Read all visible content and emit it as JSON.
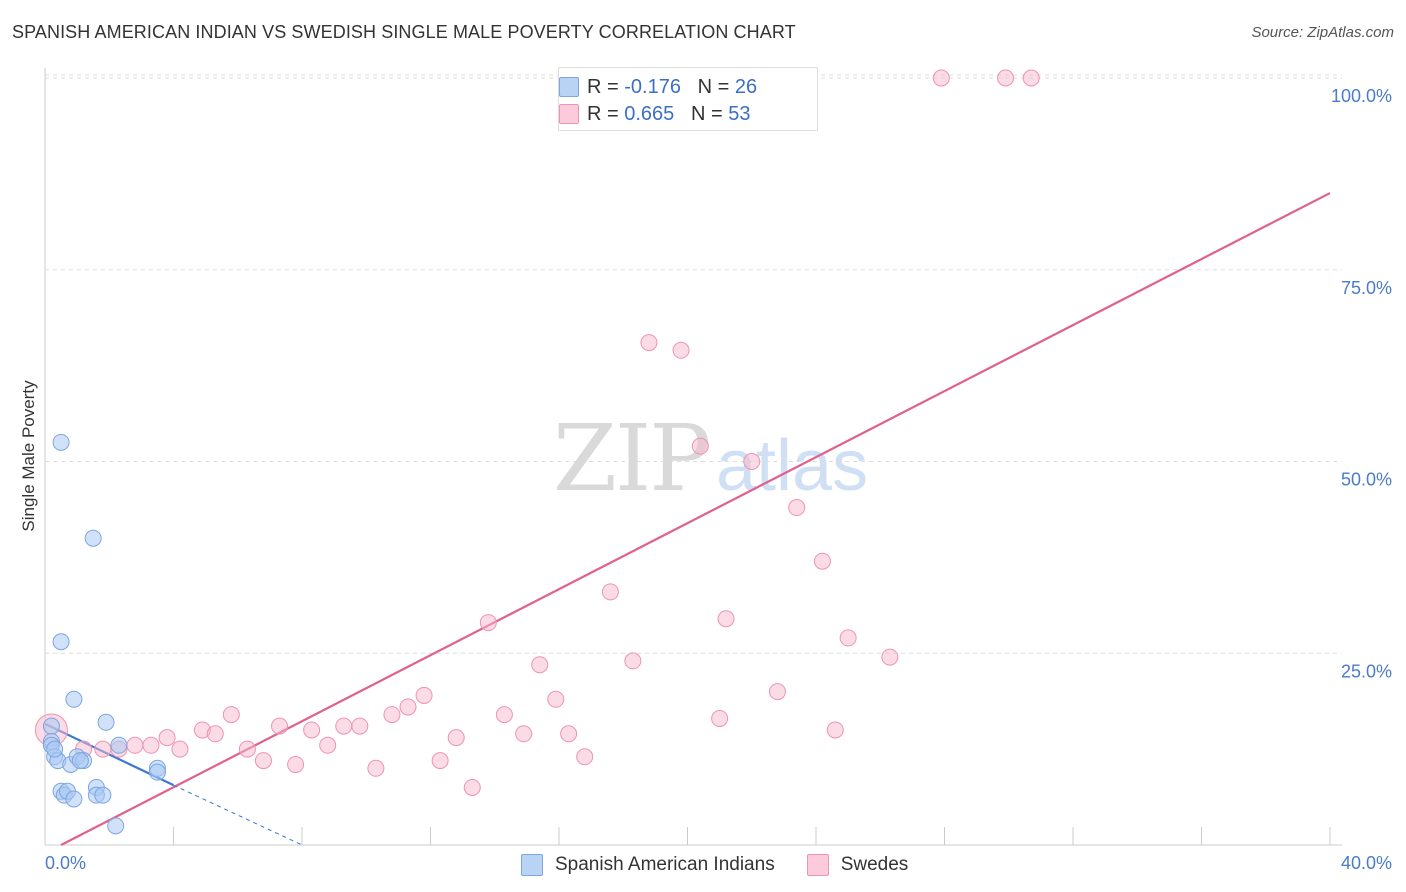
{
  "title": "SPANISH AMERICAN INDIAN VS SWEDISH SINGLE MALE POVERTY CORRELATION CHART",
  "source": "Source: ZipAtlas.com",
  "watermark": {
    "part1": "ZIP",
    "part2": "atlas"
  },
  "legend_stats": [
    {
      "r_label": "R = ",
      "r_value": "-0.176",
      "n_label": "N = ",
      "n_value": "26",
      "color": "#a9c8f2"
    },
    {
      "r_label": "R = ",
      "r_value": "0.665",
      "n_label": "N = ",
      "n_value": "53",
      "color": "#f7b8cb"
    }
  ],
  "colors": {
    "blue_fill": "#a9c8f2",
    "blue_stroke": "#7aa6e3",
    "blue_line": "#3a78d4",
    "pink_fill": "#f7b8cb",
    "pink_stroke": "#ee94b0",
    "pink_line": "#e0608e",
    "grid": "#dddddd",
    "tick_text": "#4a7cc9"
  },
  "chart_data": {
    "type": "scatter",
    "title": "SPANISH AMERICAN INDIAN VS SWEDISH SINGLE MALE POVERTY CORRELATION CHART",
    "xlabel": "",
    "ylabel": "Single Male Poverty",
    "xlim": [
      0,
      40
    ],
    "ylim": [
      0,
      100
    ],
    "x_tick_labels": [
      "0.0%",
      "40.0%"
    ],
    "y_tick_labels": [
      "25.0%",
      "50.0%",
      "75.0%",
      "100.0%"
    ],
    "y_ticks": [
      25,
      50,
      75,
      100
    ],
    "legend_position": "bottom-center",
    "series": [
      {
        "name": "Spanish American Indians",
        "color": "#a9c8f2",
        "points": [
          {
            "x": 0.2,
            "y": 15.5
          },
          {
            "x": 0.2,
            "y": 13.5
          },
          {
            "x": 0.2,
            "y": 13.0
          },
          {
            "x": 0.3,
            "y": 11.5
          },
          {
            "x": 0.4,
            "y": 11.0
          },
          {
            "x": 0.5,
            "y": 52.5
          },
          {
            "x": 0.5,
            "y": 26.5
          },
          {
            "x": 0.5,
            "y": 7.0
          },
          {
            "x": 0.6,
            "y": 6.5
          },
          {
            "x": 0.7,
            "y": 7.0
          },
          {
            "x": 0.8,
            "y": 10.5
          },
          {
            "x": 0.9,
            "y": 6.0
          },
          {
            "x": 0.9,
            "y": 19.0
          },
          {
            "x": 1.0,
            "y": 11.5
          },
          {
            "x": 1.2,
            "y": 11.0
          },
          {
            "x": 1.5,
            "y": 40.0
          },
          {
            "x": 1.6,
            "y": 7.5
          },
          {
            "x": 1.6,
            "y": 6.5
          },
          {
            "x": 1.8,
            "y": 6.5
          },
          {
            "x": 1.9,
            "y": 16.0
          },
          {
            "x": 2.2,
            "y": 2.5
          },
          {
            "x": 2.3,
            "y": 13.0
          },
          {
            "x": 3.5,
            "y": 10.0
          },
          {
            "x": 3.5,
            "y": 9.5
          },
          {
            "x": 0.3,
            "y": 12.5
          },
          {
            "x": 1.1,
            "y": 11.0
          }
        ],
        "trend": {
          "x0": 0.0,
          "y0": 15.8,
          "x1": 4.0,
          "y1": 7.8,
          "dash_x1": 8.0,
          "dash_y1": 0.0
        }
      },
      {
        "name": "Swedes",
        "color": "#f7b8cb",
        "points": [
          {
            "x": 0.2,
            "y": 15.0,
            "big": true
          },
          {
            "x": 1.2,
            "y": 12.5
          },
          {
            "x": 1.8,
            "y": 12.5
          },
          {
            "x": 2.3,
            "y": 12.5
          },
          {
            "x": 2.8,
            "y": 13.0
          },
          {
            "x": 3.3,
            "y": 13.0
          },
          {
            "x": 3.8,
            "y": 14.0
          },
          {
            "x": 4.2,
            "y": 12.5
          },
          {
            "x": 4.9,
            "y": 15.0
          },
          {
            "x": 5.3,
            "y": 14.5
          },
          {
            "x": 5.8,
            "y": 17.0
          },
          {
            "x": 6.3,
            "y": 12.5
          },
          {
            "x": 6.8,
            "y": 11.0
          },
          {
            "x": 7.3,
            "y": 15.5
          },
          {
            "x": 7.8,
            "y": 10.5
          },
          {
            "x": 8.3,
            "y": 15.0
          },
          {
            "x": 8.8,
            "y": 13.0
          },
          {
            "x": 9.3,
            "y": 15.5
          },
          {
            "x": 9.8,
            "y": 15.5
          },
          {
            "x": 10.3,
            "y": 10.0
          },
          {
            "x": 10.8,
            "y": 17.0
          },
          {
            "x": 11.3,
            "y": 18.0
          },
          {
            "x": 11.8,
            "y": 19.5
          },
          {
            "x": 12.3,
            "y": 11.0
          },
          {
            "x": 12.8,
            "y": 14.0
          },
          {
            "x": 13.3,
            "y": 7.5
          },
          {
            "x": 13.8,
            "y": 29.0
          },
          {
            "x": 14.3,
            "y": 17.0
          },
          {
            "x": 14.9,
            "y": 14.5
          },
          {
            "x": 15.4,
            "y": 23.5
          },
          {
            "x": 15.9,
            "y": 19.0
          },
          {
            "x": 16.3,
            "y": 14.5
          },
          {
            "x": 16.8,
            "y": 11.5
          },
          {
            "x": 17.6,
            "y": 33.0
          },
          {
            "x": 18.3,
            "y": 24.0
          },
          {
            "x": 18.3,
            "y": 100.0
          },
          {
            "x": 18.8,
            "y": 65.5
          },
          {
            "x": 19.3,
            "y": 100.0
          },
          {
            "x": 19.8,
            "y": 64.5
          },
          {
            "x": 20.4,
            "y": 52.0
          },
          {
            "x": 21.0,
            "y": 16.5
          },
          {
            "x": 21.2,
            "y": 29.5
          },
          {
            "x": 22.0,
            "y": 50.0
          },
          {
            "x": 22.6,
            "y": 100.0
          },
          {
            "x": 22.8,
            "y": 20.0
          },
          {
            "x": 23.4,
            "y": 44.0
          },
          {
            "x": 24.2,
            "y": 37.0
          },
          {
            "x": 24.6,
            "y": 15.0
          },
          {
            "x": 25.0,
            "y": 27.0
          },
          {
            "x": 26.3,
            "y": 24.5
          },
          {
            "x": 27.9,
            "y": 100.0
          },
          {
            "x": 29.9,
            "y": 100.0
          },
          {
            "x": 30.7,
            "y": 100.0
          }
        ],
        "trend": {
          "x0": 0.5,
          "y0": 0.0,
          "x1": 40.0,
          "y1": 85.0
        }
      }
    ]
  },
  "bottom_legend": [
    {
      "label": "Spanish American Indians",
      "color": "#a9c8f2"
    },
    {
      "label": "Swedes",
      "color": "#f7b8cb"
    }
  ]
}
